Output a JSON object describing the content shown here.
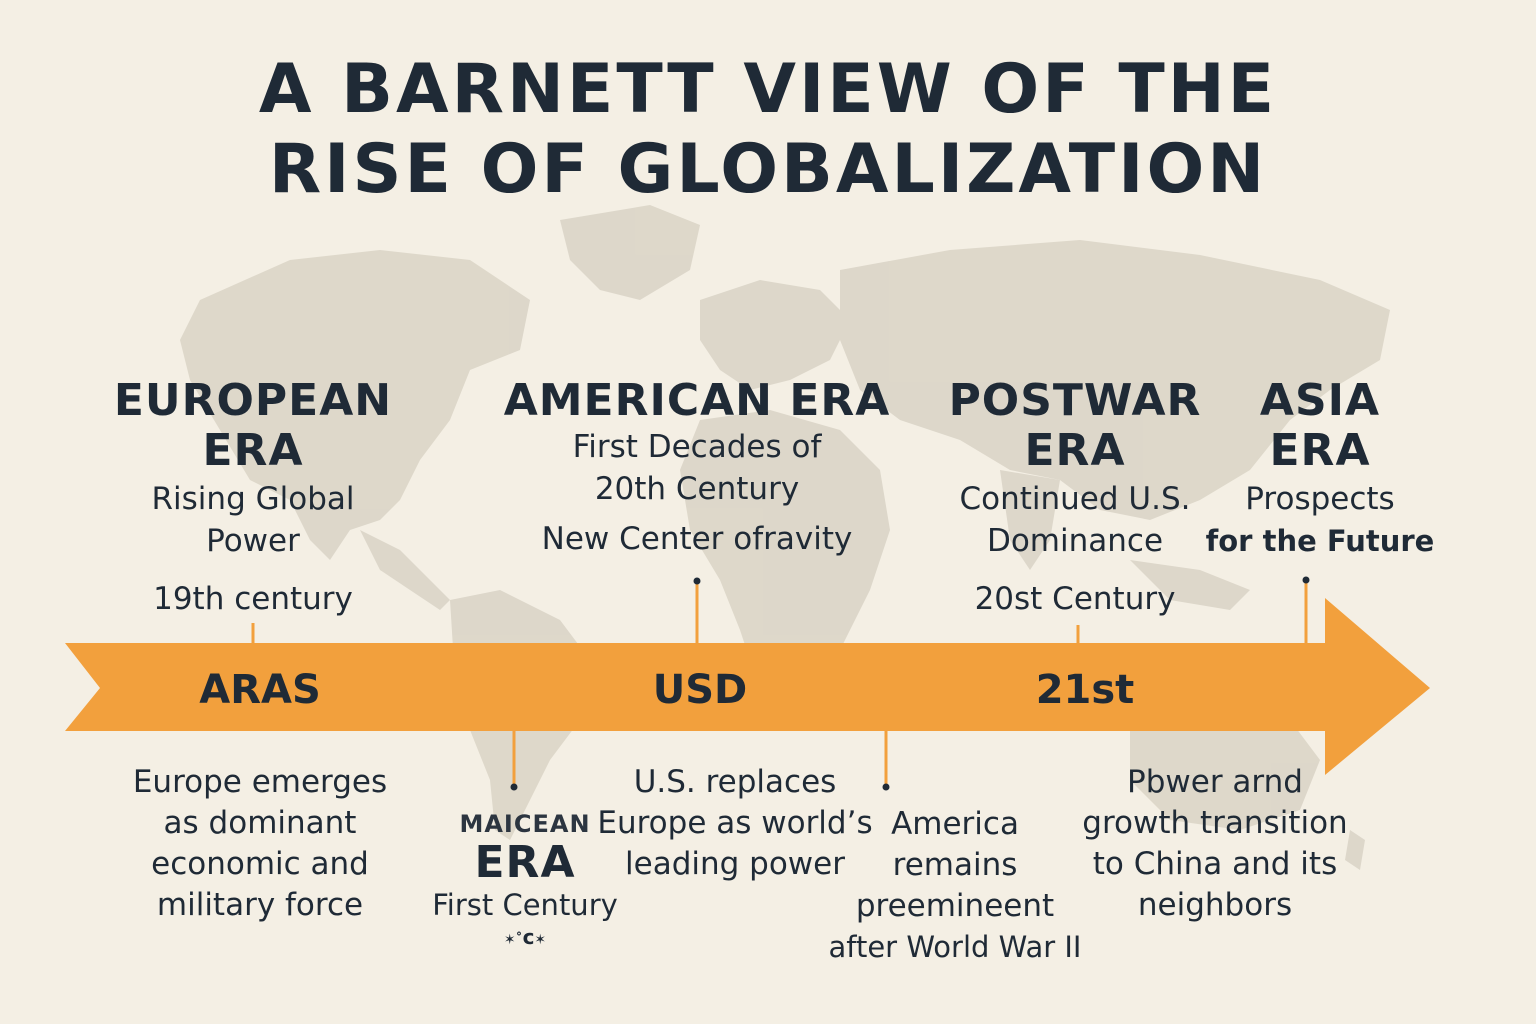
{
  "title": {
    "line1": "A BARNETT VIEW OF THE",
    "line2": "RISE OF GLOBALIZATION"
  },
  "colors": {
    "background": "#f4efe4",
    "map": "#d6d0c3",
    "arrow": "#f2a03d",
    "text": "#1f2a36"
  },
  "eras_top": [
    {
      "name_1": "EUROPEAN",
      "name_2": "ERA",
      "sub_1": "Rising Global",
      "sub_2": "Power",
      "period": "19th century"
    },
    {
      "name_1": "AMERICAN ERA",
      "sub_1": "First Decades of",
      "sub_2": "20th Century",
      "sub_3": "New Center ofravity"
    },
    {
      "name_1": "POSTWAR",
      "name_2": "ERA",
      "sub_1": "Continued U.S.",
      "sub_2": "Dominance",
      "period": "20st Century"
    },
    {
      "name_1": "ASIA",
      "name_2": "ERA",
      "sub_1": "Prospects",
      "sub_2": "for the Future"
    }
  ],
  "arrow_labels": [
    "ARAS",
    "USD",
    "21st"
  ],
  "eras_bottom": [
    {
      "lines": [
        "Europe emerges",
        "as dominant",
        "economic and",
        "military force"
      ]
    },
    {
      "small": "MAICEAN",
      "name": "ERA",
      "sub": "First Century",
      "mark": "c"
    },
    {
      "lines": [
        "U.S. replaces",
        "Europe as world’s",
        "leading power"
      ]
    },
    {
      "lines": [
        "America",
        "remains",
        "preemineent",
        "after World War II"
      ]
    },
    {
      "lines": [
        "Pbwer arnd",
        "growth transition",
        "to China and its",
        "neighbors"
      ]
    }
  ]
}
